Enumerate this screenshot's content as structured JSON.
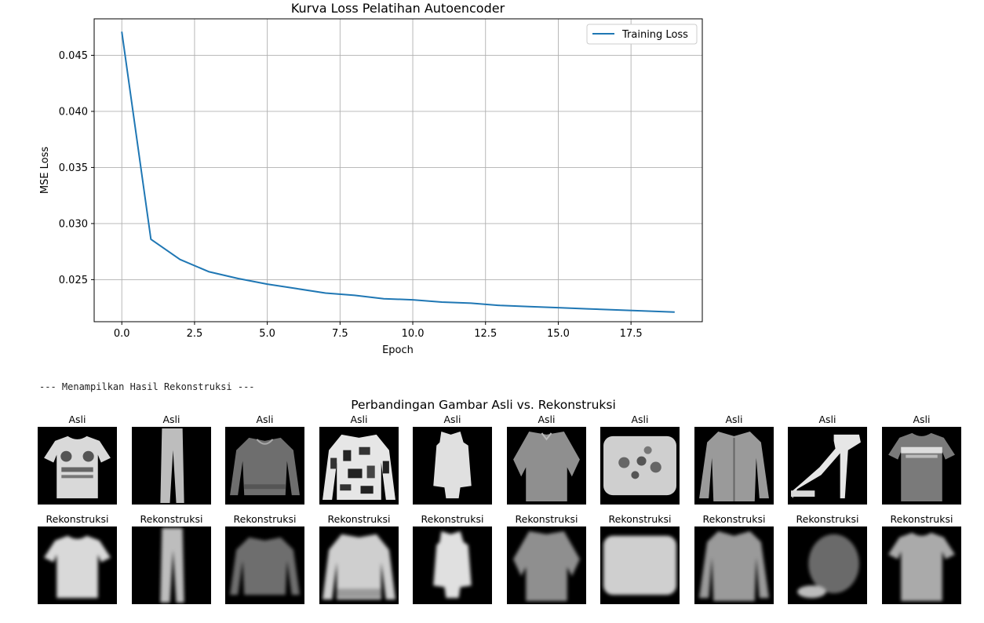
{
  "chart_data": {
    "type": "line",
    "title": "Kurva Loss Pelatihan Autoencoder",
    "xlabel": "Epoch",
    "ylabel": "MSE Loss",
    "xlim": [
      -0.95,
      19.95
    ],
    "ylim": [
      0.02125,
      0.04825
    ],
    "xticks": [
      0.0,
      2.5,
      5.0,
      7.5,
      10.0,
      12.5,
      15.0,
      17.5
    ],
    "xtick_labels": [
      "0.0",
      "2.5",
      "5.0",
      "7.5",
      "10.0",
      "12.5",
      "15.0",
      "17.5"
    ],
    "yticks": [
      0.025,
      0.03,
      0.035,
      0.04,
      0.045
    ],
    "ytick_labels": [
      "0.025",
      "0.030",
      "0.035",
      "0.040",
      "0.045"
    ],
    "grid": true,
    "legend": "top-right",
    "series": [
      {
        "name": "Training Loss",
        "color": "#1f77b4",
        "x": [
          0,
          1,
          2,
          3,
          4,
          5,
          6,
          7,
          8,
          9,
          10,
          11,
          12,
          13,
          14,
          15,
          16,
          17,
          18,
          19
        ],
        "values": [
          0.0471,
          0.0286,
          0.0268,
          0.0257,
          0.0251,
          0.0246,
          0.0242,
          0.0238,
          0.0236,
          0.0233,
          0.0232,
          0.023,
          0.0229,
          0.0227,
          0.0226,
          0.0225,
          0.0224,
          0.0223,
          0.0222,
          0.0221
        ]
      }
    ]
  },
  "console": {
    "text": "--- Menampilkan Hasil Rekonstruksi ---"
  },
  "comparison": {
    "title": "Perbandingan Gambar Asli vs. Rekonstruksi",
    "original_label": "Asli",
    "recon_label": "Rekonstruksi",
    "items": [
      {
        "type": "tshirt"
      },
      {
        "type": "trouser"
      },
      {
        "type": "pullover"
      },
      {
        "type": "pattern-pullover"
      },
      {
        "type": "dress"
      },
      {
        "type": "shirt"
      },
      {
        "type": "bag"
      },
      {
        "type": "coat"
      },
      {
        "type": "sandal"
      },
      {
        "type": "tshirt-dark"
      }
    ]
  }
}
